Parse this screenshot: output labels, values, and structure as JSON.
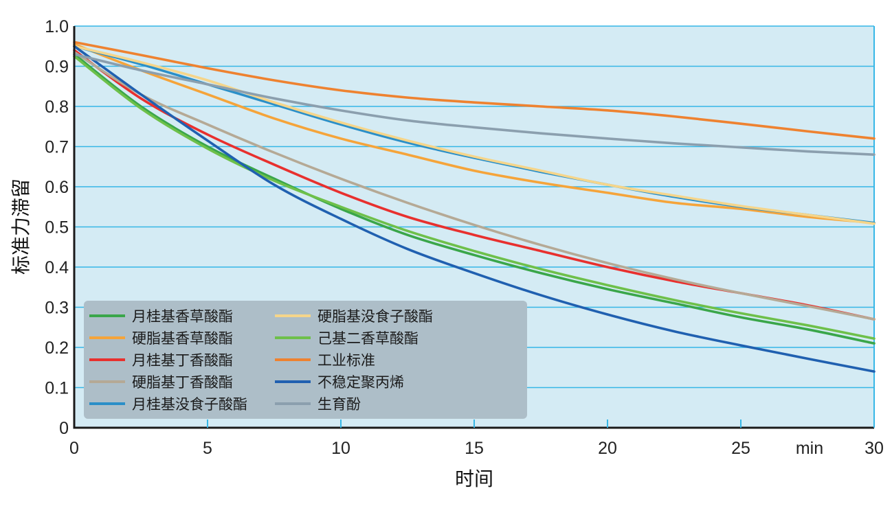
{
  "chart_data": {
    "type": "line",
    "title": "",
    "xlabel": "时间",
    "ylabel": "标准力滞留",
    "x_unit": "min",
    "xlim": [
      0,
      30
    ],
    "ylim": [
      0,
      1.0
    ],
    "x_ticks": [
      "0",
      "5",
      "10",
      "15",
      "20",
      "25",
      "30"
    ],
    "y_ticks": [
      "0",
      "0.1",
      "0.2",
      "0.3",
      "0.4",
      "0.5",
      "0.6",
      "0.7",
      "0.8",
      "0.9",
      "1.0"
    ],
    "grid": "horizontal",
    "legend_position": "bottom-left",
    "colors": {
      "plot_bg": "#d4ebf4",
      "grid": "#35b6e6",
      "legend_bg": "#adbec8"
    },
    "x": [
      0,
      2.5,
      5,
      7.5,
      10,
      12.5,
      15,
      17.5,
      20,
      22.5,
      25,
      27.5,
      30
    ],
    "series": [
      {
        "name": "月桂基香草酸酯",
        "color": "#3aa64a",
        "values": [
          0.93,
          0.8,
          0.7,
          0.62,
          0.545,
          0.48,
          0.43,
          0.385,
          0.345,
          0.31,
          0.275,
          0.245,
          0.21
        ]
      },
      {
        "name": "硬脂基香草酸酯",
        "color": "#f5a43a",
        "values": [
          0.955,
          0.89,
          0.83,
          0.77,
          0.72,
          0.68,
          0.64,
          0.61,
          0.585,
          0.56,
          0.545,
          0.525,
          0.51
        ]
      },
      {
        "name": "月桂基丁香酸酯",
        "color": "#e8302e",
        "values": [
          0.94,
          0.82,
          0.73,
          0.655,
          0.585,
          0.525,
          0.48,
          0.44,
          0.4,
          0.365,
          0.335,
          0.305,
          0.27
        ]
      },
      {
        "name": "硬脂基丁香酸酯",
        "color": "#b5a995",
        "values": [
          0.935,
          0.83,
          0.755,
          0.685,
          0.62,
          0.56,
          0.505,
          0.455,
          0.41,
          0.37,
          0.335,
          0.303,
          0.27
        ]
      },
      {
        "name": "月桂基没食子酸酯",
        "color": "#2b8fc8",
        "values": [
          0.95,
          0.905,
          0.855,
          0.805,
          0.755,
          0.71,
          0.672,
          0.637,
          0.605,
          0.575,
          0.55,
          0.53,
          0.51
        ]
      },
      {
        "name": "硬脂基没食子酸酯",
        "color": "#f5d58a",
        "values": [
          0.95,
          0.91,
          0.865,
          0.81,
          0.76,
          0.715,
          0.675,
          0.64,
          0.605,
          0.578,
          0.552,
          0.53,
          0.508
        ]
      },
      {
        "name": "己基二香草酸酯",
        "color": "#6ec04a",
        "values": [
          0.925,
          0.795,
          0.695,
          0.615,
          0.55,
          0.49,
          0.44,
          0.395,
          0.355,
          0.318,
          0.285,
          0.255,
          0.222
        ]
      },
      {
        "name": "工业标准",
        "color": "#ee8230",
        "values": [
          0.96,
          0.928,
          0.895,
          0.865,
          0.84,
          0.822,
          0.81,
          0.8,
          0.79,
          0.775,
          0.757,
          0.738,
          0.72
        ]
      },
      {
        "name": "不稳定聚丙烯",
        "color": "#2060b0",
        "values": [
          0.95,
          0.83,
          0.715,
          0.605,
          0.52,
          0.445,
          0.385,
          0.33,
          0.282,
          0.24,
          0.205,
          0.172,
          0.14
        ]
      },
      {
        "name": "生育酚",
        "color": "#8b9fae",
        "values": [
          0.93,
          0.89,
          0.855,
          0.82,
          0.79,
          0.765,
          0.748,
          0.733,
          0.72,
          0.708,
          0.698,
          0.688,
          0.68
        ]
      }
    ]
  }
}
